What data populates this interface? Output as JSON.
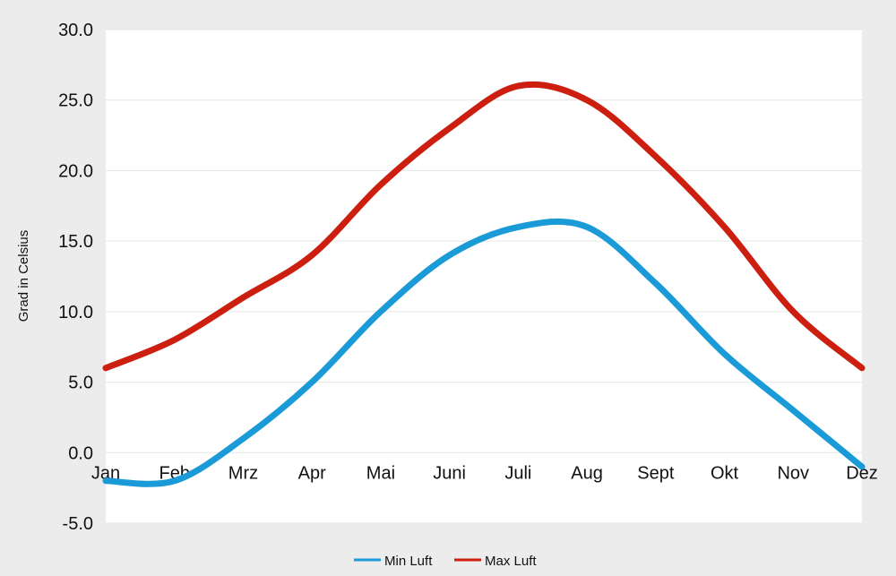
{
  "chart_data": {
    "type": "line",
    "categories": [
      "Jan",
      "Feb",
      "Mrz",
      "Apr",
      "Mai",
      "Juni",
      "Juli",
      "Aug",
      "Sept",
      "Okt",
      "Nov",
      "Dez"
    ],
    "series": [
      {
        "name": "Min Luft",
        "color": "#1a9ad6",
        "values": [
          -2.0,
          -2.0,
          1.0,
          5.0,
          10.0,
          14.0,
          16.0,
          16.0,
          12.0,
          7.0,
          3.0,
          -1.0
        ]
      },
      {
        "name": "Max Luft",
        "color": "#cc1f10",
        "values": [
          6.0,
          8.0,
          11.0,
          14.0,
          19.0,
          23.0,
          26.0,
          25.0,
          21.0,
          16.0,
          10.0,
          6.0
        ]
      }
    ],
    "title": "",
    "xlabel": "",
    "ylabel": "Grad in Celsius",
    "ylim": [
      -5,
      30
    ],
    "yticks": [
      "30.0",
      "25.0",
      "20.0",
      "15.0",
      "10.0",
      "5.0",
      "0.0",
      "-5.0"
    ],
    "ytick_values": [
      30,
      25,
      20,
      15,
      10,
      5,
      0,
      -5
    ],
    "grid": true,
    "legend_position": "bottom-center"
  }
}
